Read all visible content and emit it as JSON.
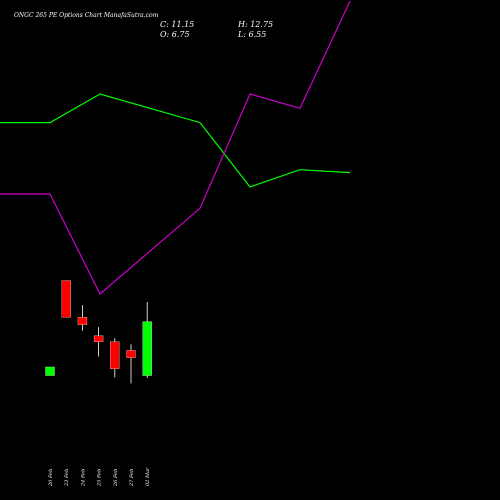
{
  "title": "ONGC 265 PE Options  Chart ManafaSutra.com",
  "ohlc": {
    "close": "C: 11.15",
    "high": "H: 12.75",
    "open": "O: 6.75",
    "low": "L: 6.55"
  },
  "colors": {
    "background": "#000000",
    "up": "#00ff00",
    "down": "#ff0000",
    "wick": "#ffffff",
    "upper_line": "#00ff00",
    "lower_line": "#cc00cc"
  },
  "chart_data": {
    "type": "candlestick",
    "title": "ONGC 265 PE Options  Chart ManafaSutra.com",
    "x_tick_labels": [
      "20 Feb",
      "23 Feb",
      "24 Feb",
      "25 Feb",
      "26 Feb",
      "27 Feb",
      "02 Mar"
    ],
    "candles": [
      {
        "date": "20 Feb",
        "open": 6.75,
        "high": 7.45,
        "low": 6.75,
        "close": 7.45
      },
      {
        "date": "23 Feb",
        "open": 14.5,
        "high": 14.5,
        "low": 11.5,
        "close": 11.5
      },
      {
        "date": "24 Feb",
        "open": 11.5,
        "high": 12.5,
        "low": 10.4,
        "close": 10.9
      },
      {
        "date": "25 Feb",
        "open": 10.0,
        "high": 10.7,
        "low": 8.3,
        "close": 9.5
      },
      {
        "date": "26 Feb",
        "open": 9.5,
        "high": 9.8,
        "low": 6.6,
        "close": 7.3
      },
      {
        "date": "27 Feb",
        "open": 8.8,
        "high": 9.3,
        "low": 6.1,
        "close": 8.2
      },
      {
        "date": "02 Mar",
        "open": 6.75,
        "high": 12.75,
        "low": 6.55,
        "close": 11.15
      }
    ],
    "upper_line": {
      "x": [
        "20 Feb",
        "23 Feb",
        "24 Feb",
        "25 Feb",
        "26 Feb",
        "27 Feb",
        "02 Mar",
        "03 Mar"
      ],
      "values": [
        1.0,
        1.0,
        1.2,
        1.1,
        1.0,
        0.55,
        0.67,
        0.65
      ]
    },
    "lower_line": {
      "x": [
        "20 Feb",
        "23 Feb",
        "24 Feb",
        "25 Feb",
        "26 Feb",
        "27 Feb",
        "02 Mar",
        "03 Mar"
      ],
      "values": [
        0.5,
        0.5,
        -0.2,
        0.1,
        0.4,
        1.2,
        1.1,
        1.85
      ]
    }
  }
}
